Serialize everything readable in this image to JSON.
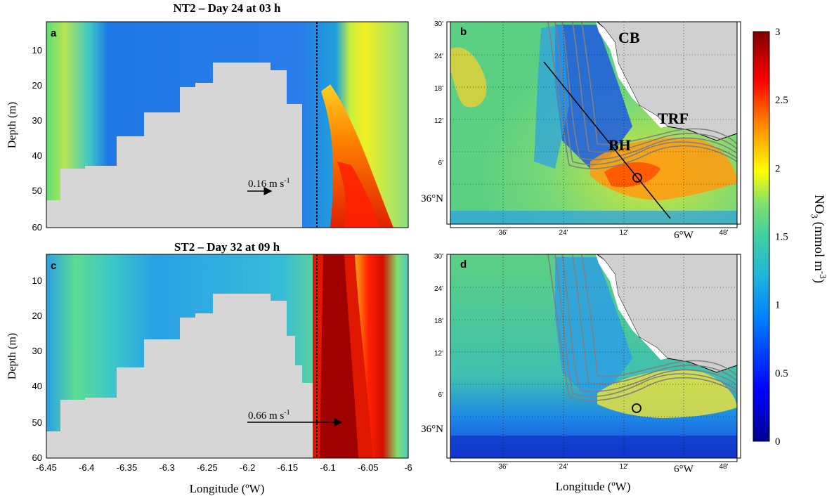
{
  "chart_data": [
    {
      "id": "a",
      "type": "heatmap",
      "panel_label": "a",
      "title": "NT2 – Day 24 at 03 h",
      "ylabel": "Depth (m)",
      "xlabel": "",
      "xlim": [
        -6.45,
        -6.0
      ],
      "ylim": [
        60,
        3
      ],
      "xticks": [],
      "yticks": [
        "10",
        "20",
        "30",
        "40",
        "50",
        "60"
      ],
      "annotation": {
        "text": "0.16 m s",
        "sup": "-1",
        "speed": 0.16
      }
    },
    {
      "id": "c",
      "type": "heatmap",
      "panel_label": "c",
      "title": "ST2 – Day 32 at 09 h",
      "ylabel": "Depth (m)",
      "xlabel": "Longitude (ºW)",
      "xlim": [
        -6.45,
        -6.0
      ],
      "ylim": [
        60,
        3
      ],
      "xticks": [
        "-6.45",
        "-6.4",
        "-6.35",
        "-6.3",
        "-6.25",
        "-6.2",
        "-6.15",
        "-6.1",
        "-6.05",
        "-6"
      ],
      "yticks": [
        "10",
        "20",
        "30",
        "40",
        "50",
        "60"
      ],
      "annotation": {
        "text": "0.66 m s",
        "sup": "-1",
        "speed": 0.66
      }
    },
    {
      "id": "b",
      "type": "heatmap",
      "panel_label": "b",
      "xlabel": "",
      "yticks": [
        "30'",
        "24'",
        "18'",
        "12'",
        "6'",
        "36°N"
      ],
      "xticks": [
        "36'",
        "24'",
        "12'",
        "6°W",
        "48'"
      ],
      "place_labels": [
        "CB",
        "TRF",
        "BH"
      ]
    },
    {
      "id": "d",
      "type": "heatmap",
      "panel_label": "d",
      "xlabel": "Longitude (ºW)",
      "yticks": [
        "30'",
        "24'",
        "18'",
        "12'",
        "6'",
        "36°N"
      ],
      "xticks": [
        "36'",
        "24'",
        "12'",
        "6°W",
        "48'"
      ]
    }
  ],
  "colorbar": {
    "label": "NO",
    "label_sub": "3",
    "label_rest": " (mmol m",
    "label_sup": "-3",
    "label_end": ")",
    "min": 0,
    "max": 3,
    "ticks": [
      "3",
      "2.5",
      "2",
      "1.5",
      "1",
      "0.5",
      "0"
    ],
    "colors": [
      "#00008f",
      "#0000ff",
      "#0080ff",
      "#00ffff",
      "#80ff80",
      "#ffff00",
      "#ff8000",
      "#ff0000",
      "#800000"
    ]
  }
}
